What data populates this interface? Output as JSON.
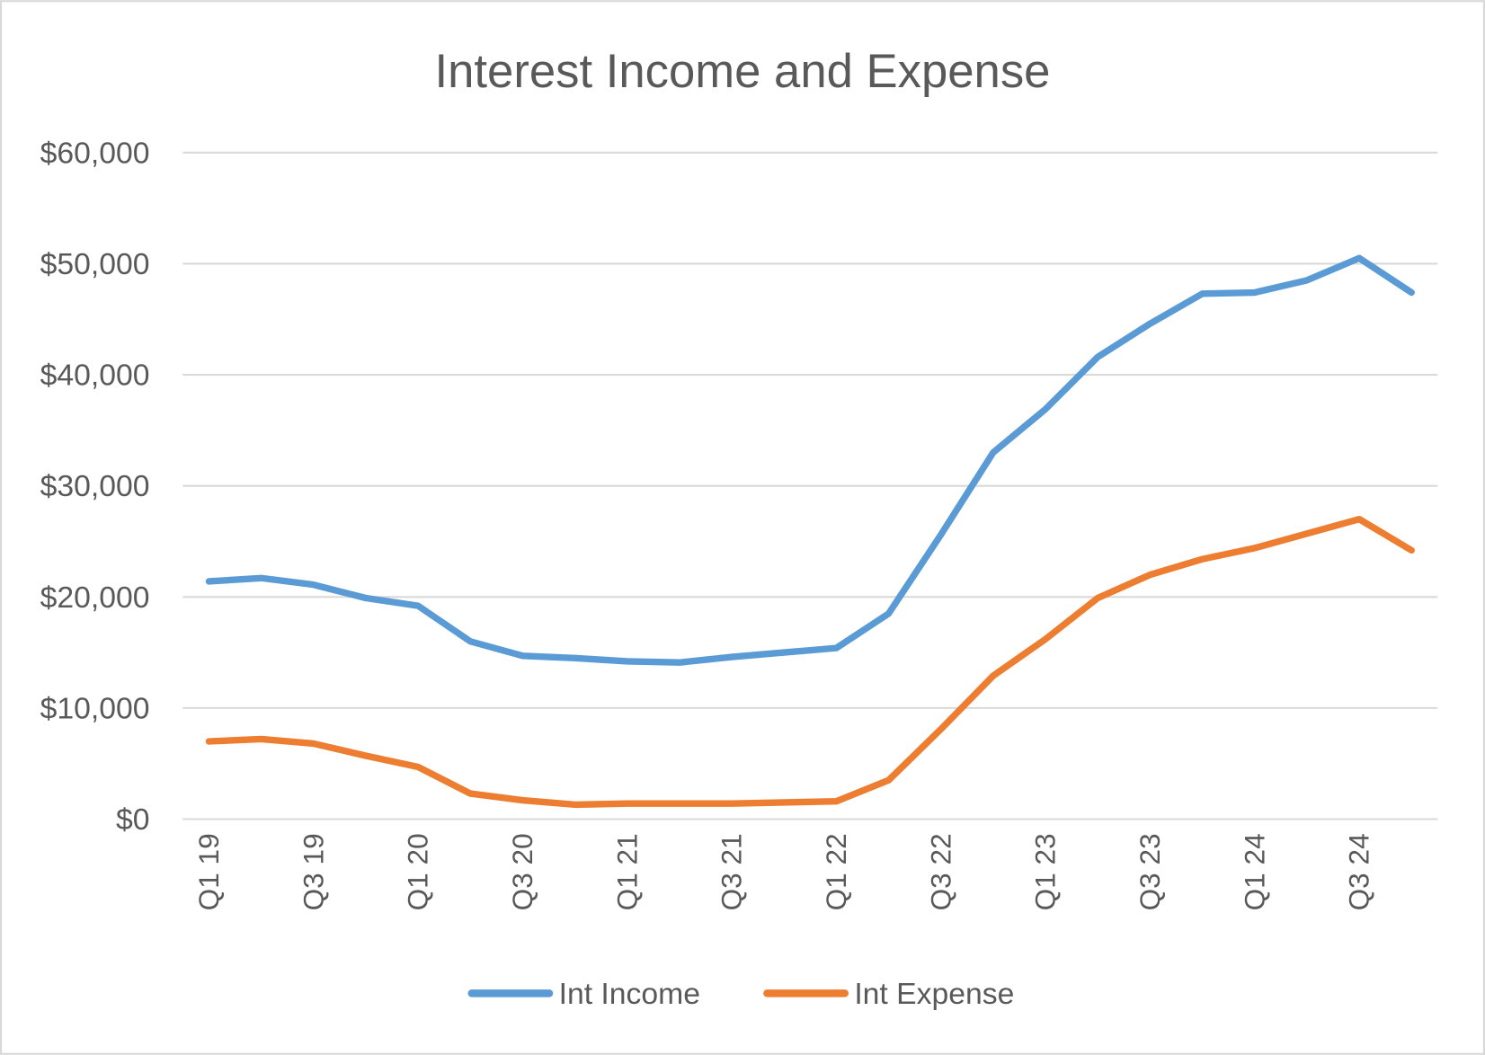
{
  "chart_data": {
    "type": "line",
    "title": "Interest Income and Expense",
    "xlabel": "",
    "ylabel": "",
    "ylim": [
      0,
      60000
    ],
    "yticks": [
      0,
      10000,
      20000,
      30000,
      40000,
      50000,
      60000
    ],
    "ytick_labels": [
      "$0",
      "$10,000",
      "$20,000",
      "$30,000",
      "$40,000",
      "$50,000",
      "$60,000"
    ],
    "grid": true,
    "legend_position": "bottom",
    "categories": [
      "Q1 19",
      "Q2 19",
      "Q3 19",
      "Q4 19",
      "Q1 20",
      "Q2 20",
      "Q3 20",
      "Q4 20",
      "Q1 21",
      "Q2 21",
      "Q3 21",
      "Q4 21",
      "Q1 22",
      "Q2 22",
      "Q3 22",
      "Q4 22",
      "Q1 23",
      "Q2 23",
      "Q3 23",
      "Q4 23",
      "Q1 24",
      "Q2 24",
      "Q3 24",
      "Q4 24"
    ],
    "xtick_labels": [
      "Q1 19",
      "Q3 19",
      "Q1 20",
      "Q3 20",
      "Q1 21",
      "Q3 21",
      "Q1 22",
      "Q3 22",
      "Q1 23",
      "Q3 23",
      "Q1 24",
      "Q3 24"
    ],
    "series": [
      {
        "name": "Int Income",
        "color": "#5b9bd5",
        "values": [
          21400,
          21700,
          21100,
          19900,
          19200,
          16000,
          14700,
          14500,
          14200,
          14100,
          14600,
          15000,
          15400,
          18500,
          25600,
          33000,
          36900,
          41600,
          44600,
          47300,
          47400,
          48500,
          50500,
          47400
        ]
      },
      {
        "name": "Int Expense",
        "color": "#ed7d31",
        "values": [
          7000,
          7200,
          6800,
          5700,
          4700,
          2300,
          1700,
          1300,
          1400,
          1400,
          1400,
          1500,
          1600,
          3500,
          8100,
          12900,
          16200,
          19900,
          22000,
          23400,
          24400,
          25700,
          27000,
          24200
        ]
      }
    ]
  }
}
